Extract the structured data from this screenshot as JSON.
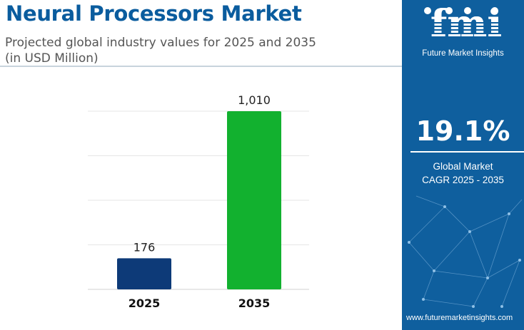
{
  "header": {
    "title": "Neural Processors Market",
    "subtitle_line1": "Projected global industry values for 2025 and 2035",
    "subtitle_line2": "(in USD Million)"
  },
  "chart_data": {
    "type": "bar",
    "title": "Neural Processors Market",
    "subtitle": "Projected global industry values for 2025 and 2035 (in USD Million)",
    "categories": [
      "2025",
      "2035"
    ],
    "values": [
      176,
      1010
    ],
    "value_labels": [
      "176",
      "1,010"
    ],
    "bar_colors": [
      "#0d3a78",
      "#12b12f"
    ],
    "ylim": [
      0,
      1010
    ],
    "grid": true,
    "legend": "none",
    "xlabel": "",
    "ylabel": ""
  },
  "sidebar": {
    "logo": "fmi",
    "brand": "Future Market Insights",
    "cagr_value": "19.1%",
    "cagr_label_line1": "Global Market",
    "cagr_label_line2": "CAGR 2025 - 2035",
    "website": "www.futuremarketinsights.com"
  },
  "colors": {
    "title": "#0a5c9e",
    "sidebar_bg": "#0f5f9e",
    "bar_2025": "#0d3a78",
    "bar_2035": "#12b12f"
  },
  "icons": [
    "fmi-logo",
    "network-pattern"
  ]
}
